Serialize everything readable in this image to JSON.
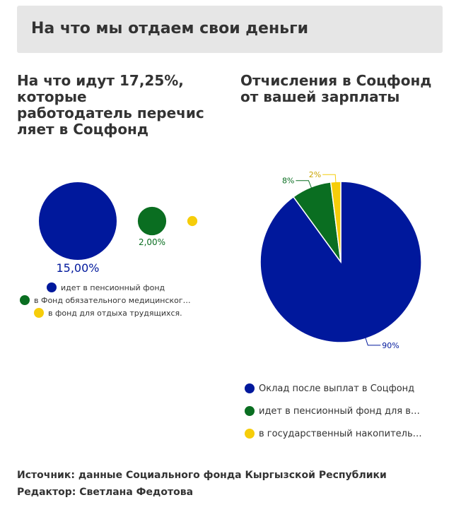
{
  "header": {
    "title": "На что мы отдаем свои деньги"
  },
  "left": {
    "title": [
      "На что идут 17,25%,",
      "которые",
      "работодатель перечис",
      "ляет в Соцфонд"
    ],
    "legend": [
      {
        "label": "идет в пенсионный фонд",
        "color": "#00189c"
      },
      {
        "label": "в Фонд обязательного медицинског…",
        "color": "#0a6e21"
      },
      {
        "label": "в фонд для отдыха трудящихся.",
        "color": "#f6cd0a"
      }
    ]
  },
  "right": {
    "title": [
      "Отчисления в Соцфонд",
      "от вашей зарплаты"
    ],
    "legend": [
      {
        "label": "Оклад после выплат в Соцфонд",
        "color": "#00189c"
      },
      {
        "label": "идет в пенсионный фонд для в…",
        "color": "#0a6e21"
      },
      {
        "label": "в государственный накопитель…",
        "color": "#f6cd0a"
      }
    ]
  },
  "chart_data": [
    {
      "type": "bubble",
      "series": [
        {
          "name": "идет в пенсионный фонд",
          "value": 15.0,
          "label": "15,00%",
          "color": "#00189c"
        },
        {
          "name": "в Фонд обязательного медицинског…",
          "value": 2.0,
          "label": "2,00%",
          "color": "#0a6e21"
        },
        {
          "name": "в фонд для отдыха трудящихся.",
          "value": 0.25,
          "label": "",
          "color": "#f6cd0a"
        }
      ]
    },
    {
      "type": "pie",
      "slices": [
        {
          "name": "Оклад после выплат в Соцфонд",
          "value": 90,
          "label": "90%",
          "color": "#00189c"
        },
        {
          "name": "идет в пенсионный фонд для в…",
          "value": 8,
          "label": "8%",
          "color": "#0a6e21"
        },
        {
          "name": "в государственный накопитель…",
          "value": 2,
          "label": "2%",
          "color": "#f6cd0a"
        }
      ]
    }
  ],
  "footer": {
    "source": "Источник: данные Социального фонда Кыргызской Республики",
    "editor": "Редактор: Светлана Федотова"
  }
}
